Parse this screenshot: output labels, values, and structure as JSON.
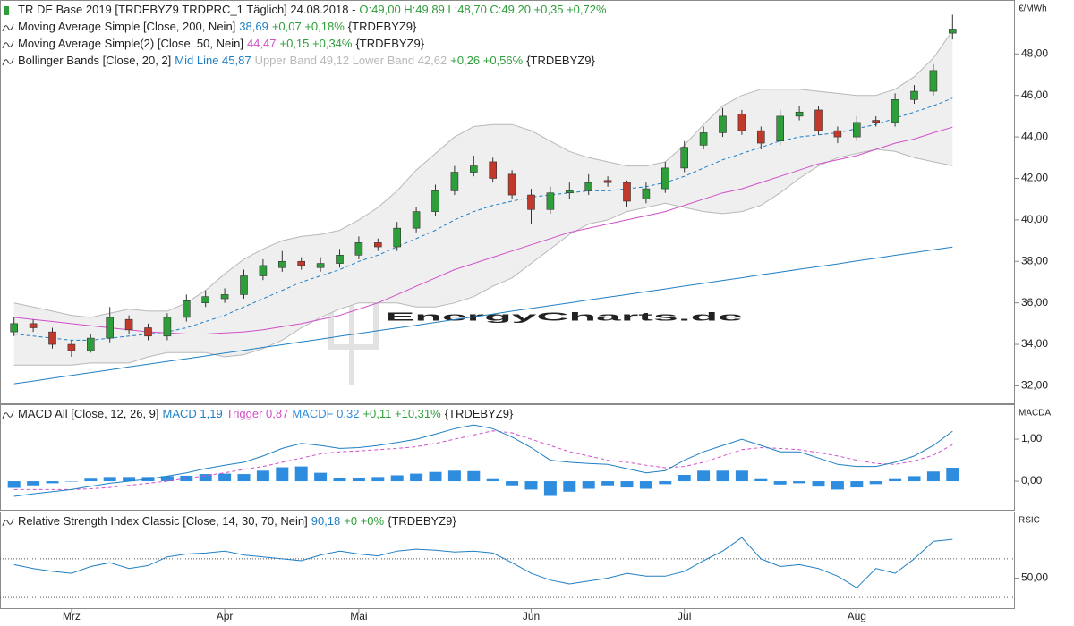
{
  "chart_data": [
    {
      "type": "candlestick",
      "title": "TR DE Base 2019 [TRDEBYZ9 TRDPRC_1 Täglich] 24.08.2018 -",
      "title_quote": "O:49,00 H:49,89 L:48,70 C:49,20 +0,35 +0,72%",
      "axis_label": "€/MWh",
      "watermark": "EnergyCharts.de",
      "categories": [
        null,
        null,
        null,
        "Mrz",
        null,
        null,
        null,
        null,
        null,
        null,
        null,
        "Apr",
        null,
        null,
        null,
        null,
        null,
        null,
        "Mai",
        null,
        null,
        null,
        null,
        null,
        null,
        null,
        null,
        "Jun",
        null,
        null,
        null,
        null,
        null,
        null,
        null,
        "Jul",
        null,
        null,
        null,
        null,
        null,
        null,
        null,
        null,
        "Aug",
        null,
        null,
        null,
        null,
        null
      ],
      "up_color": "#2e9e3a",
      "down_color": "#c0392b",
      "open": [
        34.6,
        35.0,
        34.6,
        34.0,
        33.7,
        34.3,
        35.2,
        34.8,
        34.4,
        35.3,
        36.0,
        36.2,
        36.4,
        37.3,
        37.7,
        38.0,
        37.7,
        37.9,
        38.3,
        38.9,
        38.7,
        39.6,
        40.4,
        41.4,
        42.3,
        42.8,
        42.2,
        41.2,
        40.5,
        41.3,
        41.4,
        41.9,
        41.8,
        41.0,
        41.5,
        42.5,
        43.6,
        44.2,
        45.1,
        44.3,
        43.8,
        45.0,
        45.3,
        44.3,
        44.0,
        44.8,
        44.7,
        45.8,
        46.2,
        49.0
      ],
      "high": [
        35.3,
        35.2,
        34.8,
        34.2,
        34.5,
        35.8,
        35.4,
        35.0,
        35.5,
        36.4,
        36.6,
        36.7,
        37.6,
        38.1,
        38.5,
        38.2,
        38.2,
        38.6,
        39.2,
        39.1,
        39.9,
        40.6,
        41.7,
        42.6,
        43.1,
        43.0,
        42.4,
        41.5,
        41.6,
        41.8,
        42.2,
        42.1,
        41.9,
        41.8,
        42.8,
        43.8,
        44.5,
        45.4,
        45.3,
        44.5,
        45.3,
        45.5,
        45.5,
        44.5,
        45.0,
        45.0,
        46.1,
        46.5,
        47.5,
        49.89
      ],
      "low": [
        34.4,
        34.6,
        33.8,
        33.4,
        33.6,
        34.1,
        34.5,
        34.2,
        34.2,
        35.1,
        35.8,
        36.0,
        36.2,
        37.1,
        37.5,
        37.6,
        37.5,
        37.7,
        38.1,
        38.5,
        38.5,
        39.4,
        40.2,
        41.2,
        42.1,
        41.8,
        41.0,
        39.8,
        40.3,
        41.0,
        41.2,
        41.6,
        40.6,
        40.8,
        41.3,
        42.3,
        43.4,
        44.0,
        44.1,
        43.4,
        43.6,
        44.8,
        44.1,
        43.7,
        43.8,
        44.5,
        44.5,
        45.6,
        46.0,
        48.7
      ],
      "close": [
        35.0,
        34.8,
        34.0,
        33.7,
        34.3,
        35.3,
        34.7,
        34.4,
        35.3,
        36.1,
        36.3,
        36.4,
        37.3,
        37.8,
        38.0,
        37.8,
        37.9,
        38.3,
        38.9,
        38.7,
        39.6,
        40.4,
        41.4,
        42.3,
        42.6,
        42.0,
        41.2,
        40.5,
        41.3,
        41.4,
        41.8,
        41.8,
        40.9,
        41.5,
        42.5,
        43.5,
        44.2,
        45.0,
        44.3,
        43.7,
        45.0,
        45.2,
        44.3,
        44.0,
        44.7,
        44.7,
        45.8,
        46.2,
        47.2,
        49.2
      ],
      "series": [
        {
          "name": "Moving Average Simple [Close, 200, Nein]",
          "value_label": "38,69",
          "change": "+0,07 +0,18%",
          "symbol": "{TRDEBYZ9}",
          "color": "#1f7fc4",
          "values": [
            32.1,
            32.23,
            32.37,
            32.5,
            32.64,
            32.77,
            32.91,
            33.04,
            33.18,
            33.31,
            33.44,
            33.58,
            33.71,
            33.85,
            33.98,
            34.12,
            34.25,
            34.39,
            34.52,
            34.66,
            34.79,
            34.92,
            35.06,
            35.19,
            35.33,
            35.46,
            35.6,
            35.73,
            35.87,
            36.0,
            36.14,
            36.27,
            36.4,
            36.54,
            36.67,
            36.81,
            36.94,
            37.08,
            37.21,
            37.35,
            37.48,
            37.62,
            37.75,
            37.88,
            38.02,
            38.15,
            38.29,
            38.42,
            38.56,
            38.69
          ]
        },
        {
          "name": "Moving Average Simple(2) [Close, 50, Nein]",
          "value_label": "44,47",
          "change": "+0,15 +0,34%",
          "symbol": "{TRDEBYZ9}",
          "color": "#d050c8",
          "values": [
            35.3,
            35.2,
            35.1,
            35.0,
            34.9,
            34.8,
            34.7,
            34.6,
            34.55,
            34.5,
            34.5,
            34.55,
            34.6,
            34.7,
            34.85,
            35.0,
            35.2,
            35.4,
            35.7,
            36.0,
            36.4,
            36.8,
            37.2,
            37.6,
            37.9,
            38.2,
            38.5,
            38.8,
            39.1,
            39.4,
            39.6,
            39.8,
            40.0,
            40.2,
            40.4,
            40.7,
            41.0,
            41.3,
            41.5,
            41.8,
            42.1,
            42.4,
            42.7,
            42.9,
            43.1,
            43.4,
            43.7,
            43.9,
            44.2,
            44.47
          ]
        }
      ],
      "bollinger": {
        "name": "Bollinger Bands [Close, 20, 2]",
        "mid_label": "Mid Line 45,87",
        "bands_label": "Upper Band 49,12 Lower Band 42,62",
        "change": "+0,26 +0,56%",
        "symbol": "{TRDEBYZ9}",
        "mid_color": "#1f7fc4",
        "bands_color": "#b8b8b8",
        "fill_color": "#efefef",
        "mid": [
          34.5,
          34.4,
          34.3,
          34.2,
          34.2,
          34.3,
          34.4,
          34.5,
          34.6,
          34.8,
          35.1,
          35.4,
          35.8,
          36.2,
          36.6,
          37.0,
          37.3,
          37.6,
          38.0,
          38.3,
          38.7,
          39.1,
          39.5,
          40.0,
          40.4,
          40.7,
          40.9,
          41.1,
          41.2,
          41.3,
          41.4,
          41.4,
          41.5,
          41.6,
          41.8,
          42.1,
          42.5,
          42.9,
          43.2,
          43.5,
          43.8,
          44.0,
          44.1,
          44.2,
          44.4,
          44.6,
          44.9,
          45.2,
          45.5,
          45.87
        ],
        "upper": [
          36.0,
          35.8,
          35.6,
          35.4,
          35.3,
          35.5,
          35.7,
          35.6,
          35.6,
          36.0,
          36.6,
          37.4,
          38.1,
          38.6,
          39.0,
          39.2,
          39.3,
          39.5,
          40.0,
          40.6,
          41.4,
          42.4,
          43.2,
          44.0,
          44.5,
          44.6,
          44.6,
          44.3,
          43.8,
          43.3,
          43.0,
          42.8,
          42.6,
          42.6,
          42.8,
          43.6,
          44.6,
          45.5,
          46.0,
          46.3,
          46.3,
          46.3,
          46.2,
          46.1,
          46.0,
          46.0,
          46.3,
          46.9,
          47.8,
          49.12
        ],
        "lower": [
          33.0,
          33.0,
          33.0,
          33.0,
          33.1,
          33.1,
          33.1,
          33.4,
          33.6,
          33.6,
          33.6,
          33.4,
          33.5,
          33.8,
          34.2,
          34.8,
          35.3,
          35.7,
          36.0,
          36.0,
          36.0,
          35.8,
          35.8,
          36.0,
          36.3,
          36.8,
          37.2,
          37.9,
          38.6,
          39.3,
          39.8,
          40.0,
          40.4,
          40.6,
          40.8,
          40.6,
          40.4,
          40.3,
          40.4,
          40.7,
          41.3,
          42.0,
          42.6,
          43.0,
          43.2,
          43.4,
          43.3,
          43.0,
          42.8,
          42.62
        ]
      },
      "ylim": [
        31.2,
        50.6
      ],
      "yticks": [
        {
          "value": 32,
          "label": "32,00"
        },
        {
          "value": 34,
          "label": "34,00"
        },
        {
          "value": 36,
          "label": "36,00"
        },
        {
          "value": 38,
          "label": "38,00"
        },
        {
          "value": 40,
          "label": "40,00"
        },
        {
          "value": 42,
          "label": "42,00"
        },
        {
          "value": 44,
          "label": "44,00"
        },
        {
          "value": 46,
          "label": "46,00"
        },
        {
          "value": 48,
          "label": "48,00"
        }
      ]
    },
    {
      "type": "macd",
      "title": "MACD All [Close, 12, 26, 9]",
      "change": "+0,11 +10,31%",
      "symbol": "{TRDEBYZ9}",
      "axis_label": "MACDA",
      "macd": {
        "label": "MACD 1,19",
        "color": "#1f7fc4",
        "values": [
          -0.36,
          -0.3,
          -0.25,
          -0.2,
          -0.12,
          -0.05,
          0.0,
          0.05,
          0.12,
          0.2,
          0.3,
          0.38,
          0.45,
          0.6,
          0.78,
          0.9,
          0.85,
          0.78,
          0.8,
          0.85,
          0.92,
          1.0,
          1.12,
          1.25,
          1.34,
          1.25,
          1.05,
          0.8,
          0.5,
          0.45,
          0.42,
          0.4,
          0.3,
          0.2,
          0.25,
          0.5,
          0.7,
          0.85,
          1.0,
          0.85,
          0.7,
          0.7,
          0.55,
          0.4,
          0.35,
          0.35,
          0.45,
          0.6,
          0.85,
          1.19
        ]
      },
      "trigger": {
        "label": "Trigger 0,87",
        "color": "#d050c8",
        "values": [
          -0.2,
          -0.2,
          -0.2,
          -0.2,
          -0.18,
          -0.15,
          -0.1,
          -0.05,
          0.0,
          0.07,
          0.13,
          0.2,
          0.28,
          0.35,
          0.45,
          0.55,
          0.65,
          0.7,
          0.72,
          0.75,
          0.78,
          0.82,
          0.9,
          1.0,
          1.1,
          1.2,
          1.15,
          1.0,
          0.85,
          0.7,
          0.6,
          0.5,
          0.45,
          0.38,
          0.32,
          0.35,
          0.45,
          0.6,
          0.75,
          0.8,
          0.78,
          0.75,
          0.68,
          0.6,
          0.5,
          0.42,
          0.4,
          0.48,
          0.62,
          0.87
        ]
      },
      "macdf": {
        "label": "MACDF 0,32",
        "color": "#2f8de0",
        "values": [
          -0.16,
          -0.1,
          -0.05,
          0,
          0.06,
          0.1,
          0.1,
          0.1,
          0.12,
          0.13,
          0.17,
          0.18,
          0.17,
          0.25,
          0.33,
          0.35,
          0.2,
          0.08,
          0.08,
          0.1,
          0.14,
          0.18,
          0.22,
          0.25,
          0.24,
          0.05,
          -0.1,
          -0.2,
          -0.35,
          -0.25,
          -0.18,
          -0.1,
          -0.15,
          -0.18,
          -0.07,
          0.15,
          0.25,
          0.25,
          0.25,
          0.05,
          -0.08,
          -0.05,
          -0.13,
          -0.2,
          -0.15,
          -0.07,
          0.05,
          0.12,
          0.23,
          0.32
        ]
      },
      "ylim": [
        -0.68,
        1.81
      ],
      "yticks": [
        {
          "value": 0,
          "label": "0,00"
        },
        {
          "value": 1,
          "label": "1,00"
        }
      ]
    },
    {
      "type": "rsi",
      "title": "Relative Strength Index Classic [Close, 14, 30, 70, Nein]",
      "value_label": "90,18",
      "change": "+0 +0%",
      "symbol": "{TRDEBYZ9}",
      "axis_label": "RSIC",
      "color": "#1f7fc4",
      "values": [
        64,
        60,
        57,
        55,
        62,
        66,
        60,
        63,
        72,
        75,
        76,
        78,
        74,
        72,
        70,
        68,
        74,
        78,
        75,
        73,
        78,
        80,
        79,
        77,
        78,
        76,
        66,
        55,
        48,
        44,
        47,
        50,
        55,
        52,
        52,
        57,
        68,
        78,
        92,
        70,
        62,
        64,
        60,
        52,
        40,
        60,
        55,
        70,
        88,
        90.18
      ],
      "levels": [
        30,
        70
      ],
      "ylim": [
        19,
        118
      ],
      "yticks": [
        {
          "value": 50,
          "label": "50,00"
        }
      ]
    }
  ]
}
